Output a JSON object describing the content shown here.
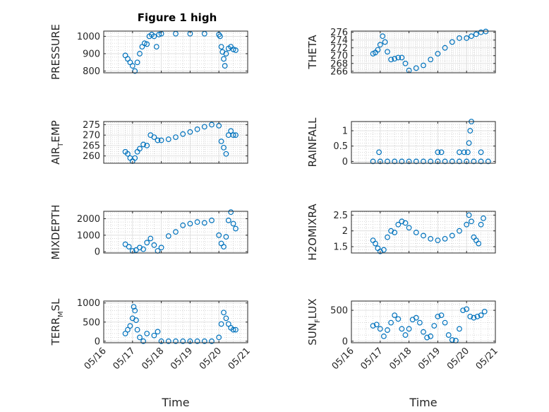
{
  "figure": {
    "title": "Figure 1 high"
  },
  "style": {
    "marker_color": "#0072bd",
    "grid_color": "#c8c8c8",
    "axis_color": "#262626"
  },
  "chart_data": [
    {
      "type": "scatter",
      "ylabel": "PRESSURE",
      "yticks": [
        800,
        900,
        1000
      ],
      "ylim": [
        790,
        1030
      ],
      "xlim": [
        "05/16",
        "05/21"
      ],
      "xticks": [
        "05/16",
        "05/17",
        "05/18",
        "05/19",
        "05/20",
        "05/21"
      ],
      "xlabel": "",
      "x": [
        "05/16 18:00",
        "05/16 20:00",
        "05/16 22:00",
        "05/17 00:00",
        "05/17 02:00",
        "05/17 04:00",
        "05/17 06:00",
        "05/17 08:00",
        "05/17 10:00",
        "05/17 12:00",
        "05/17 14:00",
        "05/17 16:00",
        "05/17 18:00",
        "05/17 20:00",
        "05/17 22:00",
        "05/18 00:00",
        "05/18 12:00",
        "05/19 00:00",
        "05/19 12:00",
        "05/20 00:00",
        "05/20 01:00",
        "05/20 02:00",
        "05/20 03:00",
        "05/20 04:00",
        "05/20 05:00",
        "05/20 06:00",
        "05/20 08:00",
        "05/20 10:00",
        "05/20 12:00",
        "05/20 14:00"
      ],
      "y": [
        890,
        870,
        850,
        830,
        800,
        850,
        900,
        940,
        960,
        955,
        1000,
        1010,
        1000,
        940,
        1010,
        1015,
        1015,
        1015,
        1015,
        1010,
        1000,
        940,
        910,
        870,
        830,
        900,
        930,
        940,
        925,
        920
      ]
    },
    {
      "type": "scatter",
      "ylabel": "THETA",
      "yticks": [
        266,
        268,
        270,
        272,
        274,
        276
      ],
      "ylim": [
        265.6,
        276.3
      ],
      "xlim": [
        "05/16",
        "05/21"
      ],
      "xticks": [
        "05/16",
        "05/17",
        "05/18",
        "05/19",
        "05/20",
        "05/21"
      ],
      "xlabel": "",
      "x": [
        "05/16 18:00",
        "05/16 20:00",
        "05/16 22:00",
        "05/17 00:00",
        "05/17 02:00",
        "05/17 04:00",
        "05/17 06:00",
        "05/17 09:00",
        "05/17 12:00",
        "05/17 15:00",
        "05/17 18:00",
        "05/17 21:00",
        "05/18 00:00",
        "05/18 06:00",
        "05/18 12:00",
        "05/18 18:00",
        "05/19 00:00",
        "05/19 06:00",
        "05/19 12:00",
        "05/19 18:00",
        "05/20 00:00",
        "05/20 04:00",
        "05/20 08:00",
        "05/20 12:00",
        "05/20 16:00"
      ],
      "y": [
        270.5,
        270.8,
        271.5,
        272.8,
        275,
        273.5,
        271,
        269,
        269.2,
        269.5,
        269.5,
        268,
        266.2,
        266.8,
        267.5,
        269,
        270.5,
        272,
        273.5,
        274.5,
        274.5,
        275,
        275.5,
        276,
        276.2
      ]
    },
    {
      "type": "scatter",
      "ylabel": "AIR",
      "ylabel_sub": "T",
      "ylabel_tail": "EMP",
      "yticks": [
        260,
        265,
        270,
        275
      ],
      "ylim": [
        256.5,
        276.5
      ],
      "xlim": [
        "05/16",
        "05/21"
      ],
      "xticks": [
        "05/16",
        "05/17",
        "05/18",
        "05/19",
        "05/20",
        "05/21"
      ],
      "xlabel": "",
      "x": [
        "05/16 18:00",
        "05/16 20:00",
        "05/16 22:00",
        "05/17 00:00",
        "05/17 02:00",
        "05/17 04:00",
        "05/17 06:00",
        "05/17 09:00",
        "05/17 12:00",
        "05/17 15:00",
        "05/17 18:00",
        "05/17 21:00",
        "05/18 00:00",
        "05/18 06:00",
        "05/18 12:00",
        "05/18 18:00",
        "05/19 00:00",
        "05/19 06:00",
        "05/19 12:00",
        "05/19 18:00",
        "05/20 00:00",
        "05/20 02:00",
        "05/20 04:00",
        "05/20 06:00",
        "05/20 08:00",
        "05/20 10:00",
        "05/20 12:00",
        "05/20 14:00"
      ],
      "y": [
        262,
        261,
        259,
        257.5,
        259,
        262,
        263.5,
        265.5,
        265,
        270,
        269,
        267.5,
        267.5,
        268,
        269,
        270.5,
        271.5,
        272.8,
        274,
        275,
        274.5,
        267,
        264,
        261,
        270,
        272,
        270,
        270
      ]
    },
    {
      "type": "scatter",
      "ylabel": "RAINFALL",
      "yticks": [
        0,
        0.5,
        1
      ],
      "ylim": [
        -0.06,
        1.3
      ],
      "xlim": [
        "05/16",
        "05/21"
      ],
      "xticks": [
        "05/16",
        "05/17",
        "05/18",
        "05/19",
        "05/20",
        "05/21"
      ],
      "xlabel": "",
      "x": [
        "05/16 18:00",
        "05/17 00:00",
        "05/17 06:00",
        "05/17 12:00",
        "05/17 18:00",
        "05/18 00:00",
        "05/18 06:00",
        "05/18 12:00",
        "05/18 18:00",
        "05/19 00:00",
        "05/19 06:00",
        "05/19 12:00",
        "05/19 18:00",
        "05/20 00:00",
        "05/20 06:00",
        "05/20 12:00",
        "05/20 18:00",
        "05/16 23:00",
        "05/19 00:00",
        "05/19 03:00",
        "05/19 18:00",
        "05/19 22:00",
        "05/20 01:00",
        "05/20 02:00",
        "05/20 03:00",
        "05/20 04:00",
        "05/20 12:00"
      ],
      "y": [
        0,
        0,
        0,
        0,
        0,
        0,
        0,
        0,
        0,
        0,
        0,
        0,
        0,
        0,
        0,
        0,
        0,
        0.3,
        0.3,
        0.3,
        0.3,
        0.3,
        0.3,
        0.6,
        1.0,
        1.3,
        0.3
      ]
    },
    {
      "type": "scatter",
      "ylabel": "MIXDEPTH",
      "yticks": [
        0,
        1000,
        2000
      ],
      "ylim": [
        -80,
        2450
      ],
      "xlim": [
        "05/16",
        "05/21"
      ],
      "xticks": [
        "05/16",
        "05/17",
        "05/18",
        "05/19",
        "05/20",
        "05/21"
      ],
      "xlabel": "",
      "x": [
        "05/16 18:00",
        "05/16 21:00",
        "05/17 00:00",
        "05/17 03:00",
        "05/17 06:00",
        "05/17 09:00",
        "05/17 12:00",
        "05/17 15:00",
        "05/17 18:00",
        "05/17 21:00",
        "05/18 00:00",
        "05/18 06:00",
        "05/18 12:00",
        "05/18 18:00",
        "05/19 00:00",
        "05/19 06:00",
        "05/19 12:00",
        "05/19 18:00",
        "05/20 00:00",
        "05/20 02:00",
        "05/20 04:00",
        "05/20 06:00",
        "05/20 08:00",
        "05/20 10:00",
        "05/20 12:00",
        "05/20 14:00"
      ],
      "y": [
        450,
        300,
        50,
        100,
        250,
        150,
        550,
        800,
        400,
        50,
        250,
        950,
        1200,
        1600,
        1700,
        1800,
        1750,
        1900,
        1000,
        500,
        300,
        900,
        1900,
        2400,
        1700,
        1400
      ]
    },
    {
      "type": "scatter",
      "ylabel": "H2OMIXRA",
      "yticks": [
        1.5,
        2,
        2.5
      ],
      "ylim": [
        1.3,
        2.62
      ],
      "xlim": [
        "05/16",
        "05/21"
      ],
      "xticks": [
        "05/16",
        "05/17",
        "05/18",
        "05/19",
        "05/20",
        "05/21"
      ],
      "xlabel": "",
      "x": [
        "05/16 18:00",
        "05/16 20:00",
        "05/16 22:00",
        "05/17 00:00",
        "05/17 03:00",
        "05/17 06:00",
        "05/17 09:00",
        "05/17 12:00",
        "05/17 15:00",
        "05/17 18:00",
        "05/17 21:00",
        "05/18 00:00",
        "05/18 06:00",
        "05/18 12:00",
        "05/18 18:00",
        "05/19 00:00",
        "05/19 06:00",
        "05/19 12:00",
        "05/19 18:00",
        "05/20 00:00",
        "05/20 02:00",
        "05/20 04:00",
        "05/20 06:00",
        "05/20 08:00",
        "05/20 10:00",
        "05/20 12:00",
        "05/20 14:00"
      ],
      "y": [
        1.7,
        1.6,
        1.45,
        1.35,
        1.4,
        1.8,
        2.0,
        1.95,
        2.2,
        2.3,
        2.25,
        2.1,
        1.95,
        1.85,
        1.75,
        1.7,
        1.75,
        1.85,
        2.0,
        2.2,
        2.5,
        2.3,
        1.8,
        1.7,
        1.6,
        2.2,
        2.4
      ]
    },
    {
      "type": "scatter",
      "ylabel": "TERR",
      "ylabel_sub": "M",
      "ylabel_tail": "SL",
      "yticks": [
        0,
        500,
        1000
      ],
      "ylim": [
        -40,
        1050
      ],
      "xlim": [
        "05/16",
        "05/21"
      ],
      "xticks": [
        "05/16",
        "05/17",
        "05/18",
        "05/19",
        "05/20",
        "05/21"
      ],
      "xlabel": "Time",
      "x": [
        "05/16 18:00",
        "05/16 20:00",
        "05/16 22:00",
        "05/17 00:00",
        "05/17 01:00",
        "05/17 02:00",
        "05/17 03:00",
        "05/17 04:00",
        "05/17 06:00",
        "05/17 09:00",
        "05/17 12:00",
        "05/17 18:00",
        "05/17 21:00",
        "05/18 00:00",
        "05/18 06:00",
        "05/18 12:00",
        "05/18 18:00",
        "05/19 00:00",
        "05/19 06:00",
        "05/19 12:00",
        "05/19 18:00",
        "05/20 00:00",
        "05/20 02:00",
        "05/20 04:00",
        "05/20 06:00",
        "05/20 08:00",
        "05/20 10:00",
        "05/20 12:00",
        "05/20 14:00"
      ],
      "y": [
        200,
        300,
        400,
        600,
        900,
        800,
        550,
        300,
        100,
        0,
        200,
        150,
        250,
        0,
        0,
        0,
        0,
        0,
        0,
        0,
        0,
        100,
        450,
        750,
        600,
        450,
        350,
        300,
        300
      ]
    },
    {
      "type": "scatter",
      "ylabel": "SUN",
      "ylabel_sub": "F",
      "ylabel_tail": "LUX",
      "yticks": [
        0,
        500
      ],
      "ylim": [
        -25,
        650
      ],
      "xlim": [
        "05/16",
        "05/21"
      ],
      "xticks": [
        "05/16",
        "05/17",
        "05/18",
        "05/19",
        "05/20",
        "05/21"
      ],
      "xlabel": "Time",
      "x": [
        "05/16 18:00",
        "05/16 21:00",
        "05/17 00:00",
        "05/17 03:00",
        "05/17 06:00",
        "05/17 09:00",
        "05/17 12:00",
        "05/17 15:00",
        "05/17 18:00",
        "05/17 21:00",
        "05/18 00:00",
        "05/18 03:00",
        "05/18 06:00",
        "05/18 09:00",
        "05/18 12:00",
        "05/18 15:00",
        "05/18 18:00",
        "05/18 21:00",
        "05/19 00:00",
        "05/19 03:00",
        "05/19 06:00",
        "05/19 09:00",
        "05/19 12:00",
        "05/19 15:00",
        "05/19 18:00",
        "05/19 21:00",
        "05/20 00:00",
        "05/20 03:00",
        "05/20 06:00",
        "05/20 09:00",
        "05/20 12:00",
        "05/20 15:00"
      ],
      "y": [
        250,
        270,
        200,
        80,
        180,
        300,
        420,
        360,
        200,
        100,
        200,
        350,
        380,
        300,
        150,
        60,
        80,
        250,
        400,
        420,
        300,
        100,
        20,
        10,
        200,
        500,
        520,
        400,
        380,
        400,
        420,
        480
      ]
    }
  ]
}
